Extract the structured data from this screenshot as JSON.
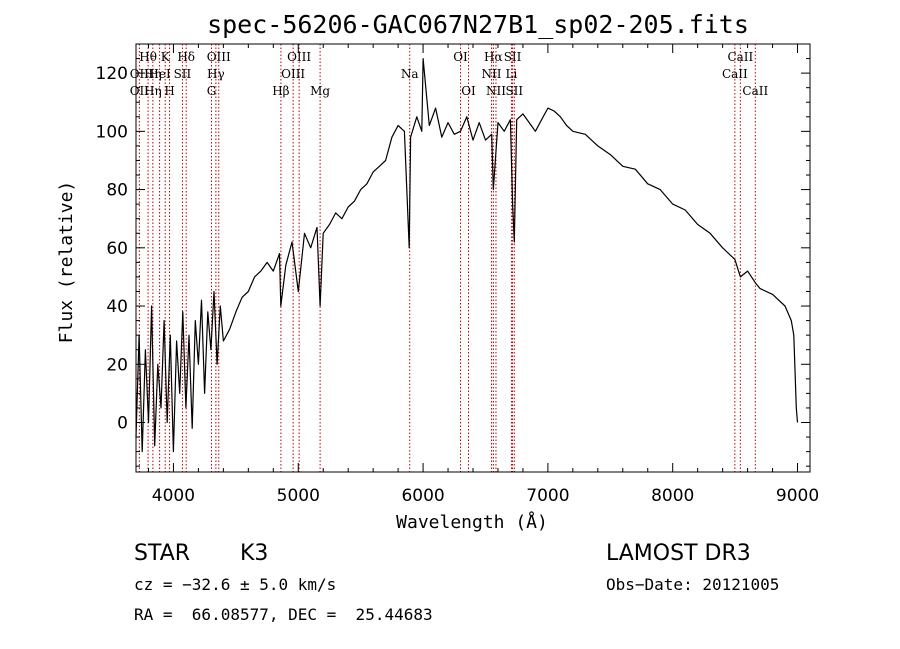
{
  "chart_data": {
    "type": "line",
    "title": "spec-56206-GAC067N27B1_sp02-205.fits",
    "xlabel": "Wavelength (Å)",
    "ylabel": "Flux (relative)",
    "xlim": [
      3700,
      9100
    ],
    "ylim": [
      -17,
      130
    ],
    "x_ticks": [
      4000,
      5000,
      6000,
      7000,
      8000,
      9000
    ],
    "y_ticks": [
      0,
      20,
      40,
      60,
      80,
      100,
      120
    ],
    "series": [
      {
        "name": "flux",
        "x": [
          3700,
          3725,
          3750,
          3775,
          3800,
          3825,
          3850,
          3875,
          3900,
          3925,
          3950,
          3975,
          4000,
          4025,
          4050,
          4075,
          4100,
          4125,
          4150,
          4175,
          4200,
          4225,
          4250,
          4275,
          4300,
          4325,
          4350,
          4375,
          4400,
          4450,
          4500,
          4550,
          4600,
          4650,
          4700,
          4750,
          4800,
          4850,
          4860,
          4900,
          4950,
          5000,
          5050,
          5100,
          5150,
          5175,
          5200,
          5250,
          5300,
          5350,
          5400,
          5450,
          5500,
          5550,
          5600,
          5650,
          5700,
          5750,
          5800,
          5850,
          5889,
          5900,
          5950,
          5990,
          6000,
          6050,
          6100,
          6150,
          6200,
          6250,
          6300,
          6350,
          6400,
          6450,
          6500,
          6550,
          6563,
          6600,
          6650,
          6700,
          6717,
          6731,
          6750,
          6800,
          6850,
          6900,
          6950,
          7000,
          7050,
          7100,
          7150,
          7200,
          7300,
          7400,
          7500,
          7600,
          7700,
          7800,
          7900,
          8000,
          8100,
          8200,
          8300,
          8400,
          8498,
          8542,
          8600,
          8662,
          8700,
          8800,
          8900,
          8950,
          8970,
          8990,
          9000
        ],
        "y": [
          -5,
          30,
          -10,
          25,
          0,
          40,
          -8,
          20,
          5,
          35,
          0,
          30,
          -10,
          28,
          10,
          38,
          5,
          30,
          -2,
          35,
          20,
          42,
          10,
          38,
          25,
          45,
          20,
          40,
          28,
          32,
          38,
          43,
          45,
          50,
          52,
          55,
          52,
          58,
          40,
          54,
          62,
          45,
          65,
          60,
          67,
          40,
          65,
          68,
          72,
          70,
          74,
          76,
          80,
          82,
          86,
          88,
          90,
          98,
          102,
          100,
          60,
          98,
          105,
          100,
          125,
          102,
          108,
          98,
          103,
          99,
          100,
          105,
          97,
          103,
          97,
          99,
          80,
          103,
          100,
          104,
          75,
          62,
          104,
          106,
          103,
          100,
          104,
          108,
          107,
          105,
          102,
          100,
          99,
          95,
          92,
          88,
          87,
          82,
          80,
          75,
          73,
          68,
          65,
          60,
          56,
          50,
          52,
          48,
          46,
          44,
          40,
          35,
          30,
          5,
          0
        ]
      }
    ],
    "emission_line_labels": [
      {
        "label": "Hθ",
        "x": 3797,
        "row": 1
      },
      {
        "label": "OII",
        "x": 3727,
        "row": 2
      },
      {
        "label": "OII",
        "x": 3727,
        "row": 3
      },
      {
        "label": "Hη",
        "x": 3835,
        "row": 2
      },
      {
        "label": "Hη",
        "x": 3835,
        "row": 3
      },
      {
        "label": "K",
        "x": 3934,
        "row": 1
      },
      {
        "label": "HeI",
        "x": 3889,
        "row": 2
      },
      {
        "label": "H",
        "x": 3969,
        "row": 3
      },
      {
        "label": "Hδ",
        "x": 4102,
        "row": 1
      },
      {
        "label": "SII",
        "x": 4072,
        "row": 2
      },
      {
        "label": "OIII",
        "x": 4363,
        "row": 1
      },
      {
        "label": "Hγ",
        "x": 4340,
        "row": 2
      },
      {
        "label": "G",
        "x": 4305,
        "row": 3
      },
      {
        "label": "OIII",
        "x": 5007,
        "row": 1
      },
      {
        "label": "OIII",
        "x": 4959,
        "row": 2
      },
      {
        "label": "Hβ",
        "x": 4861,
        "row": 3
      },
      {
        "label": "Mg",
        "x": 5175,
        "row": 3
      },
      {
        "label": "Na",
        "x": 5893,
        "row": 2
      },
      {
        "label": "OI",
        "x": 6300,
        "row": 1
      },
      {
        "label": "OI",
        "x": 6364,
        "row": 3
      },
      {
        "label": "Hα",
        "x": 6563,
        "row": 1
      },
      {
        "label": "SII",
        "x": 6717,
        "row": 1
      },
      {
        "label": "NII",
        "x": 6548,
        "row": 2
      },
      {
        "label": "Li",
        "x": 6708,
        "row": 2
      },
      {
        "label": "NII",
        "x": 6584,
        "row": 3
      },
      {
        "label": "SII",
        "x": 6731,
        "row": 3
      },
      {
        "label": "CaII",
        "x": 8542,
        "row": 1
      },
      {
        "label": "CaII",
        "x": 8498,
        "row": 2
      },
      {
        "label": "CaII",
        "x": 8662,
        "row": 3
      }
    ],
    "line_markers_x": [
      3727,
      3797,
      3835,
      3889,
      3934,
      3969,
      4072,
      4102,
      4305,
      4340,
      4363,
      4861,
      4959,
      5007,
      5175,
      5893,
      6300,
      6364,
      6548,
      6563,
      6584,
      6708,
      6717,
      6731,
      8498,
      8542,
      8662
    ]
  },
  "info": {
    "object_class": "STAR",
    "subclass": "K3",
    "survey": "LAMOST DR3",
    "cz": "cz = −32.6 ± 5.0 km/s",
    "obs_date": "Obs−Date: 20121005",
    "coords": "RA =  66.08577, DEC =  25.44683"
  }
}
